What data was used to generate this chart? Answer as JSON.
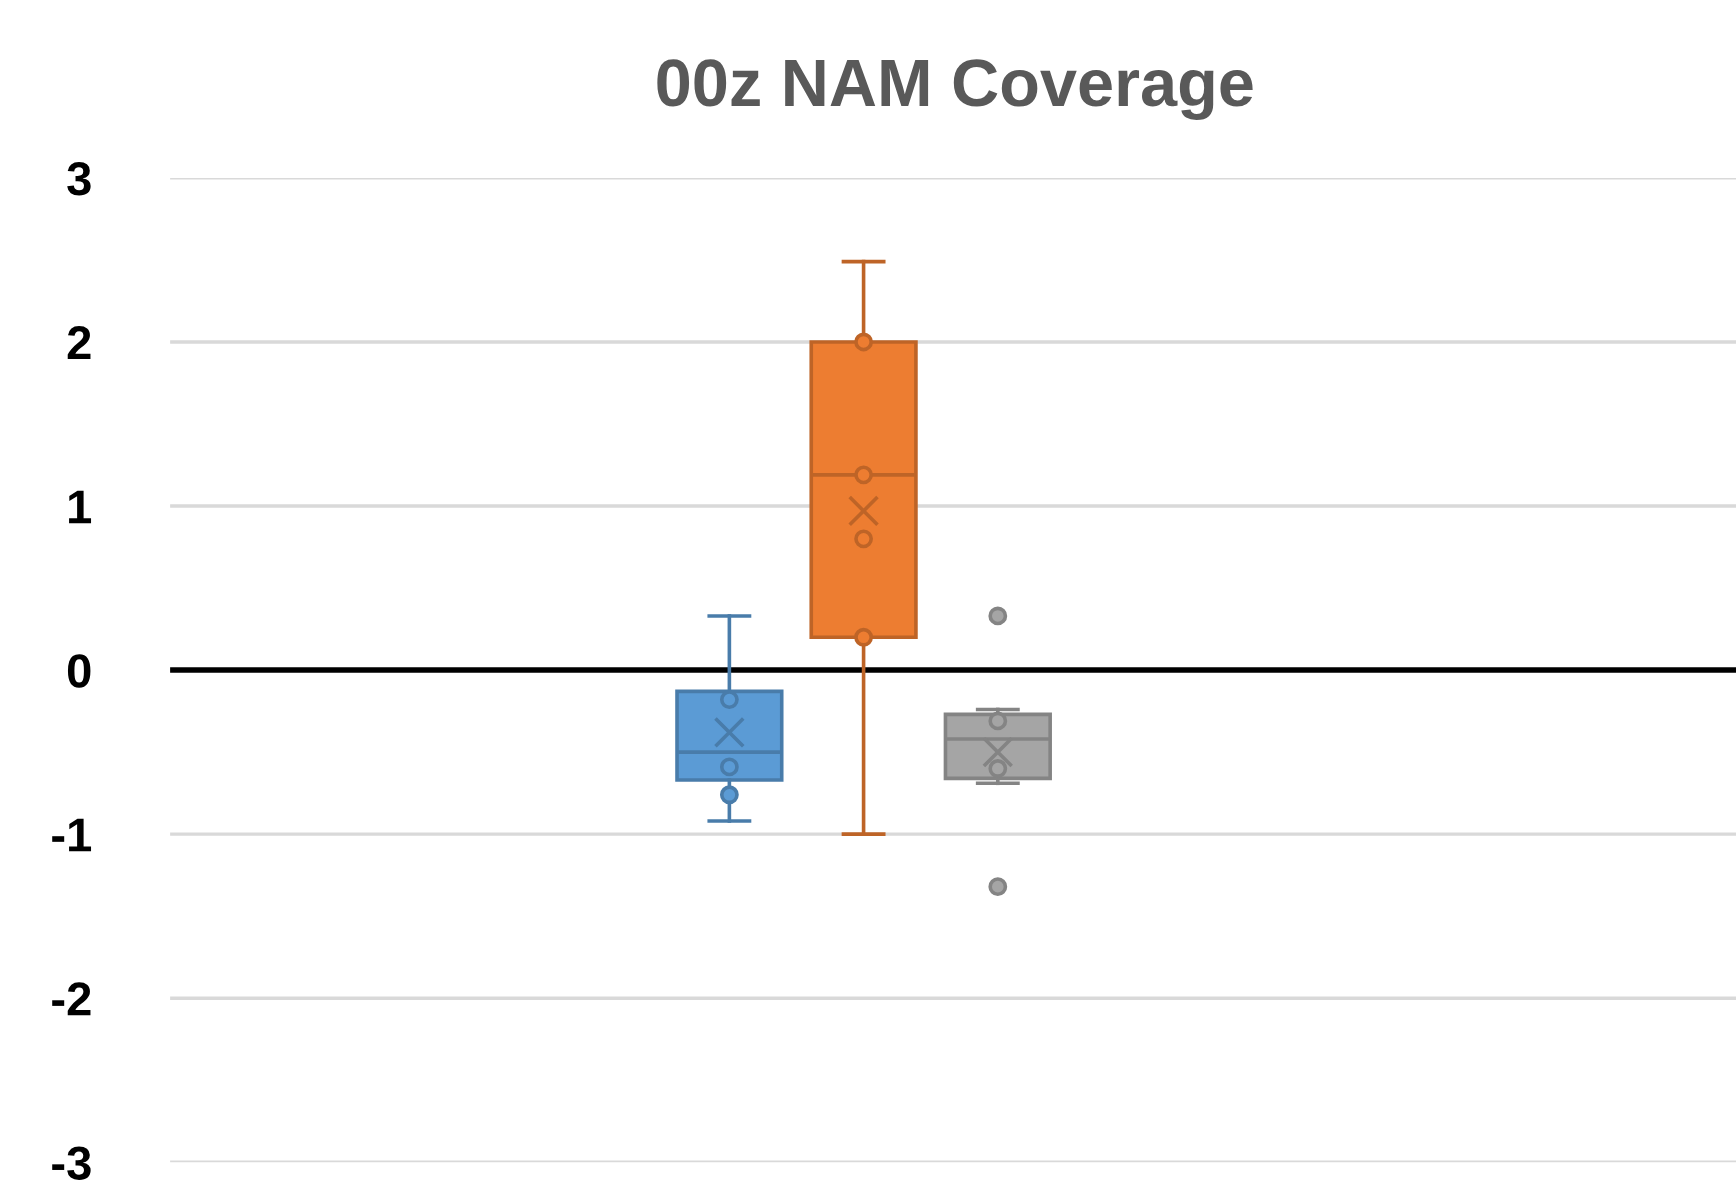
{
  "chart_data": {
    "type": "box",
    "title": "00z NAM Coverage",
    "categories": [
      null
    ],
    "series": [
      {
        "color": "#5b9bd5",
        "boxes": [
          {
            "low": -0.92,
            "q1": -0.67,
            "median": -0.5,
            "q3": -0.13,
            "high": 0.33,
            "mean": -0.38,
            "outliers": [
              -0.18,
              -0.59,
              -0.76
            ]
          }
        ]
      },
      {
        "color": "#ed7d31",
        "boxes": [
          {
            "low": -1.0,
            "q1": 0.2,
            "median": 1.19,
            "q3": 2.0,
            "high": 2.49,
            "mean": 0.97,
            "outliers": [
              2.0,
              1.19,
              0.8,
              0.2
            ]
          }
        ]
      },
      {
        "color": "#a5a5a5",
        "boxes": [
          {
            "low": -0.69,
            "q1": -0.66,
            "median": -0.42,
            "q3": -0.27,
            "high": -0.24,
            "mean": -0.5,
            "outliers": [
              0.33,
              -0.31,
              -0.6,
              -1.32
            ]
          }
        ]
      }
    ],
    "ylim": [
      -3,
      3
    ],
    "yticks": [
      -3,
      -2,
      -1,
      0,
      1,
      2,
      3
    ],
    "grid": "y",
    "legend": false,
    "tick_labels": "y",
    "ref_lines": [
      {
        "axis": "y",
        "value": 0,
        "color": "#000000"
      }
    ]
  }
}
